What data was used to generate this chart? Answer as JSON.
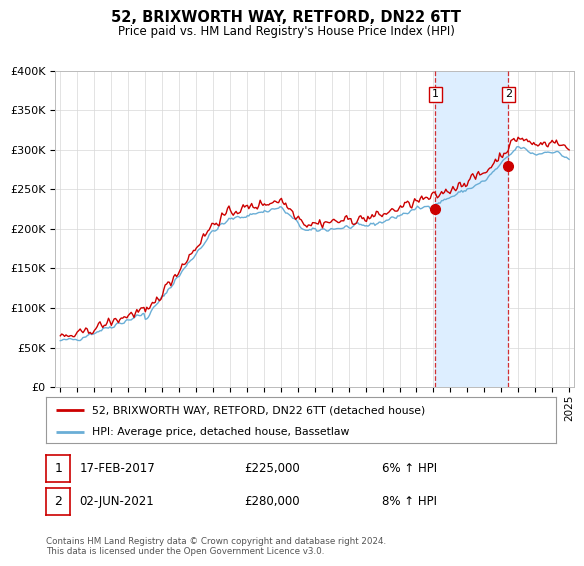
{
  "title": "52, BRIXWORTH WAY, RETFORD, DN22 6TT",
  "subtitle": "Price paid vs. HM Land Registry's House Price Index (HPI)",
  "ylim": [
    0,
    400000
  ],
  "yticks": [
    0,
    50000,
    100000,
    150000,
    200000,
    250000,
    300000,
    350000,
    400000
  ],
  "ytick_labels": [
    "£0",
    "£50K",
    "£100K",
    "£150K",
    "£200K",
    "£250K",
    "£300K",
    "£350K",
    "£400K"
  ],
  "hpi_color": "#6aaed6",
  "price_color": "#cc0000",
  "shade_color": "#ddeeff",
  "grid_color": "#d8d8d8",
  "background_color": "#ffffff",
  "legend_label_price": "52, BRIXWORTH WAY, RETFORD, DN22 6TT (detached house)",
  "legend_label_hpi": "HPI: Average price, detached house, Bassetlaw",
  "transaction1_date": "17-FEB-2017",
  "transaction1_price": "£225,000",
  "transaction1_hpi": "6% ↑ HPI",
  "transaction2_date": "02-JUN-2021",
  "transaction2_price": "£280,000",
  "transaction2_hpi": "8% ↑ HPI",
  "footer": "Contains HM Land Registry data © Crown copyright and database right 2024.\nThis data is licensed under the Open Government Licence v3.0.",
  "marker1_year": 2017.12,
  "marker1_value": 225000,
  "marker2_year": 2021.42,
  "marker2_value": 280000,
  "vline1_year": 2017.12,
  "vline2_year": 2021.42,
  "xlim_left": 1994.7,
  "xlim_right": 2025.3
}
